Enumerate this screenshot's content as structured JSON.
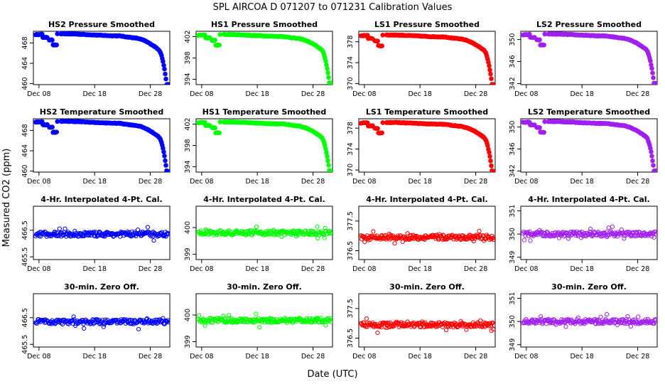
{
  "figure": {
    "title": "SPL   AIRCOA D   071207 to 071231   Calibration Values",
    "xlabel": "Date (UTC)",
    "ylabel": "Measured CO2 (ppm)"
  },
  "chart_data": [
    {
      "type": "scatter",
      "title": "HS2 Pressure Smoothed",
      "shape": "decline",
      "color": "#0000ff",
      "x_range_days": [
        7,
        31.5
      ],
      "xticks": [
        "Dec 08",
        "Dec 18",
        "Dec 28"
      ],
      "xtick_days": [
        8,
        18,
        28
      ],
      "ylim": [
        459.8,
        470.3
      ],
      "yticks": [
        460,
        464,
        468
      ],
      "base": 469.8,
      "low": 459.8
    },
    {
      "type": "scatter",
      "title": "HS1 Pressure Smoothed",
      "shape": "decline",
      "color": "#00ff00",
      "x_range_days": [
        7,
        31.5
      ],
      "xticks": [
        "Dec 08",
        "Dec 18",
        "Dec 28"
      ],
      "xtick_days": [
        8,
        18,
        28
      ],
      "ylim": [
        393,
        403
      ],
      "yticks": [
        394,
        398,
        402
      ],
      "base": 402.4,
      "low": 393.3
    },
    {
      "type": "scatter",
      "title": "LS1 Pressure Smoothed",
      "shape": "decline",
      "color": "#ff0000",
      "x_range_days": [
        7,
        31.5
      ],
      "xticks": [
        "Dec 08",
        "Dec 18",
        "Dec 28"
      ],
      "xtick_days": [
        8,
        18,
        28
      ],
      "ylim": [
        369.8,
        380
      ],
      "yticks": [
        370,
        374,
        378
      ],
      "base": 379.3,
      "low": 369.8
    },
    {
      "type": "scatter",
      "title": "LS2 Pressure Smoothed",
      "shape": "decline",
      "color": "#a020f0",
      "x_range_days": [
        7,
        31.5
      ],
      "xticks": [
        "Dec 08",
        "Dec 18",
        "Dec 28"
      ],
      "xtick_days": [
        8,
        18,
        28
      ],
      "ylim": [
        341.8,
        351.5
      ],
      "yticks": [
        342,
        346,
        350
      ],
      "base": 351.0,
      "low": 342.0
    },
    {
      "type": "scatter",
      "title": "HS2 Temperature Smoothed",
      "shape": "decline",
      "color": "#0000ff",
      "x_range_days": [
        7,
        31.5
      ],
      "xticks": [
        "Dec 08",
        "Dec 18",
        "Dec 28"
      ],
      "xtick_days": [
        8,
        18,
        28
      ],
      "ylim": [
        459.8,
        470.3
      ],
      "yticks": [
        460,
        464,
        468
      ],
      "base": 469.8,
      "low": 460.0
    },
    {
      "type": "scatter",
      "title": "HS1 Temperature Smoothed",
      "shape": "decline",
      "color": "#00ff00",
      "x_range_days": [
        7,
        31.5
      ],
      "xticks": [
        "Dec 08",
        "Dec 18",
        "Dec 28"
      ],
      "xtick_days": [
        8,
        18,
        28
      ],
      "ylim": [
        393,
        403
      ],
      "yticks": [
        394,
        398,
        402
      ],
      "base": 402.4,
      "low": 393.2
    },
    {
      "type": "scatter",
      "title": "LS1 Temperature Smoothed",
      "shape": "decline",
      "color": "#ff0000",
      "x_range_days": [
        7,
        31.5
      ],
      "xticks": [
        "Dec 08",
        "Dec 18",
        "Dec 28"
      ],
      "xtick_days": [
        8,
        18,
        28
      ],
      "ylim": [
        369.6,
        379.8
      ],
      "yticks": [
        370,
        374,
        378
      ],
      "base": 379.1,
      "low": 369.8
    },
    {
      "type": "scatter",
      "title": "LS2 Temperature Smoothed",
      "shape": "decline",
      "color": "#a020f0",
      "x_range_days": [
        7,
        31.5
      ],
      "xticks": [
        "Dec 08",
        "Dec 18",
        "Dec 28"
      ],
      "xtick_days": [
        8,
        18,
        28
      ],
      "ylim": [
        341.8,
        351.5
      ],
      "yticks": [
        342,
        346,
        350
      ],
      "base": 351.0,
      "low": 342.0
    },
    {
      "type": "scatter",
      "title": "4-Hr. Interpolated 4-Pt. Cal.",
      "shape": "flat",
      "color": "#0000ff",
      "x_range_days": [
        7,
        31.5
      ],
      "xticks": [
        "Dec 08",
        "Dec 18",
        "Dec 28"
      ],
      "xtick_days": [
        8,
        18,
        28
      ],
      "ylim": [
        465.4,
        467.4
      ],
      "yticks": [
        465.5,
        466.5
      ],
      "base": 466.35
    },
    {
      "type": "scatter",
      "title": "4-Hr. Interpolated 4-Pt. Cal.",
      "shape": "flat",
      "color": "#00ff00",
      "x_range_days": [
        7,
        31.5
      ],
      "xticks": [
        "Dec 08",
        "Dec 18",
        "Dec 28"
      ],
      "xtick_days": [
        8,
        18,
        28
      ],
      "ylim": [
        398.8,
        400.8
      ],
      "yticks": [
        399.0,
        400.0
      ],
      "base": 399.8
    },
    {
      "type": "scatter",
      "title": "4-Hr. Interpolated 4-Pt. Cal.",
      "shape": "flat",
      "color": "#ff0000",
      "x_range_days": [
        7,
        31.5
      ],
      "xticks": [
        "Dec 08",
        "Dec 18",
        "Dec 28"
      ],
      "xtick_days": [
        8,
        18,
        28
      ],
      "ylim": [
        376.2,
        378.0
      ],
      "yticks": [
        376.5,
        377.5
      ],
      "base": 376.95
    },
    {
      "type": "scatter",
      "title": "4-Hr. Interpolated 4-Pt. Cal.",
      "shape": "flat",
      "color": "#a020f0",
      "x_range_days": [
        7,
        31.5
      ],
      "xticks": [
        "Dec 08",
        "Dec 18",
        "Dec 28"
      ],
      "xtick_days": [
        8,
        18,
        28
      ],
      "ylim": [
        348.9,
        351.2
      ],
      "yticks": [
        349.0,
        350.0,
        351.0
      ],
      "base": 350.0
    },
    {
      "type": "scatter",
      "title": "30-min. Zero Off.",
      "shape": "flat",
      "color": "#0000ff",
      "x_range_days": [
        7,
        31.5
      ],
      "xticks": [
        "Dec 08",
        "Dec 18",
        "Dec 28"
      ],
      "xtick_days": [
        8,
        18,
        28
      ],
      "ylim": [
        465.4,
        467.4
      ],
      "yticks": [
        465.5,
        466.5
      ],
      "base": 466.35
    },
    {
      "type": "scatter",
      "title": "30-min. Zero Off.",
      "shape": "flat",
      "color": "#00ff00",
      "x_range_days": [
        7,
        31.5
      ],
      "xticks": [
        "Dec 08",
        "Dec 18",
        "Dec 28"
      ],
      "xtick_days": [
        8,
        18,
        28
      ],
      "ylim": [
        398.8,
        400.8
      ],
      "yticks": [
        399.0,
        400.0
      ],
      "base": 399.8
    },
    {
      "type": "scatter",
      "title": "30-min. Zero Off.",
      "shape": "flat",
      "color": "#ff0000",
      "x_range_days": [
        7,
        31.5
      ],
      "xticks": [
        "Dec 08",
        "Dec 18",
        "Dec 28"
      ],
      "xtick_days": [
        8,
        18,
        28
      ],
      "ylim": [
        376.2,
        378.0
      ],
      "yticks": [
        376.5,
        377.5
      ],
      "base": 376.95
    },
    {
      "type": "scatter",
      "title": "30-min. Zero Off.",
      "shape": "flat",
      "color": "#a020f0",
      "x_range_days": [
        7,
        31.5
      ],
      "xticks": [
        "Dec 08",
        "Dec 18",
        "Dec 28"
      ],
      "xtick_days": [
        8,
        18,
        28
      ],
      "ylim": [
        348.9,
        351.2
      ],
      "yticks": [
        349.0,
        350.0,
        351.0
      ],
      "base": 350.0
    }
  ]
}
